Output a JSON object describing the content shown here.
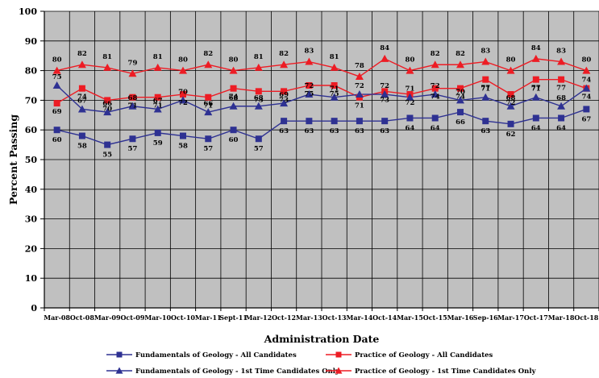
{
  "chart_data": {
    "type": "line",
    "ylabel": "Percent Passing",
    "xlabel": "Administration Date",
    "ylim": [
      0,
      100
    ],
    "yticks": [
      0,
      10,
      20,
      30,
      40,
      50,
      60,
      70,
      80,
      90,
      100
    ],
    "grid": true,
    "legend_position": "bottom",
    "categories": [
      "Mar-08",
      "Oct-08",
      "Mar-09",
      "Oct-09",
      "Mar-10",
      "Oct-10",
      "Mar-11",
      "Sept-11",
      "Mar-12",
      "Oct-12",
      "Mar-13",
      "Oct-13",
      "Mar-14",
      "Oct-14",
      "Mar-15",
      "Oct-15",
      "Mar-16",
      "Sep-16",
      "Mar-17",
      "Oct-17",
      "Mar-18",
      "Oct-18"
    ],
    "series": [
      {
        "name": "Fundamentals of Geology - All Candidates",
        "color": "#2e3192",
        "marker": "square",
        "values": [
          60,
          58,
          55,
          57,
          59,
          58,
          57,
          60,
          57,
          63,
          63,
          63,
          63,
          63,
          64,
          64,
          66,
          63,
          62,
          64,
          64,
          67
        ]
      },
      {
        "name": "Practice of Geology - All Candidates",
        "color": "#ed1c24",
        "marker": "square",
        "values": [
          69,
          74,
          70,
          71,
          71,
          72,
          71,
          74,
          73,
          73,
          75,
          75,
          71,
          73,
          72,
          74,
          74,
          77,
          72,
          77,
          77,
          74
        ]
      },
      {
        "name": "Fundamentals of Geology - 1st Time Candidates Only",
        "color": "#2e3192",
        "marker": "triangle",
        "values": [
          75,
          67,
          66,
          68,
          67,
          70,
          66,
          68,
          68,
          69,
          72,
          71,
          72,
          72,
          71,
          72,
          70,
          71,
          68,
          71,
          68,
          74
        ]
      },
      {
        "name": "Practice of Geology - 1st Time Candidates Only",
        "color": "#ed1c24",
        "marker": "triangle",
        "values": [
          80,
          82,
          81,
          79,
          81,
          80,
          82,
          80,
          81,
          82,
          83,
          81,
          78,
          84,
          80,
          82,
          82,
          83,
          80,
          84,
          83,
          80
        ]
      }
    ]
  }
}
